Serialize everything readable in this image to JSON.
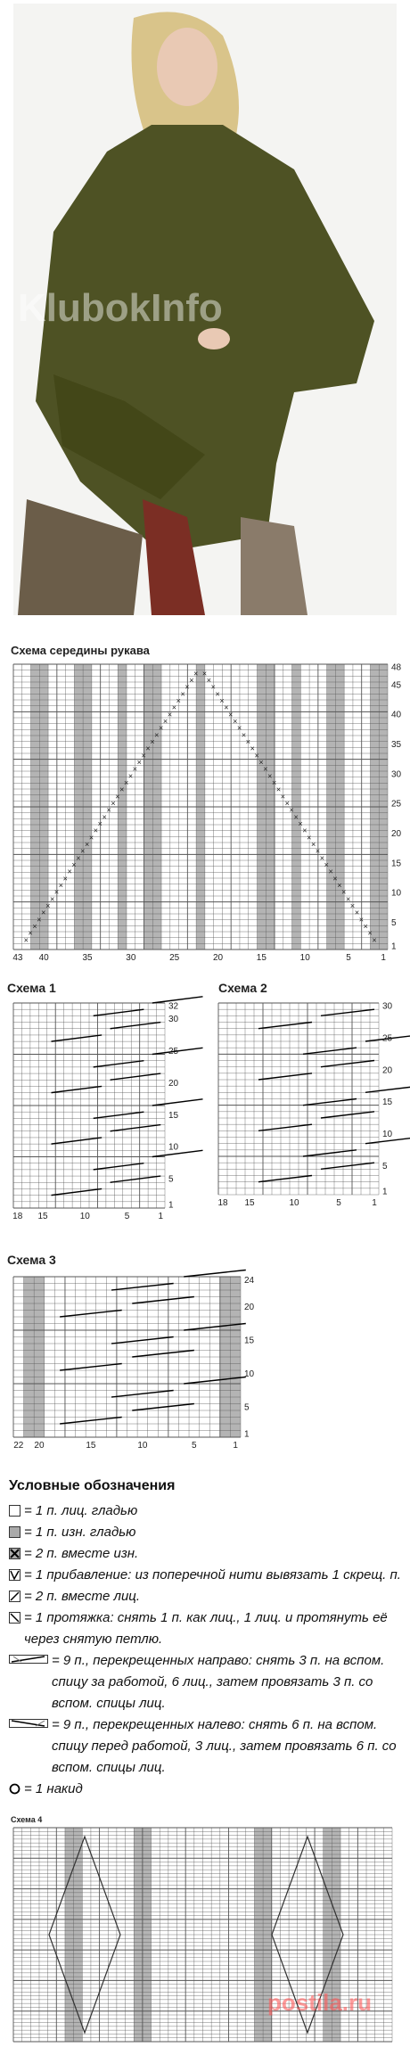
{
  "photo": {
    "watermark": "KlubokInfo"
  },
  "charts": [
    {
      "title": "Схема середины рукава",
      "yticks": [
        1,
        5,
        10,
        15,
        20,
        25,
        30,
        35,
        40,
        45,
        48
      ],
      "xticks": [
        1,
        5,
        10,
        15,
        20,
        25,
        30,
        35,
        40,
        43
      ]
    },
    {
      "title": "Схема 1",
      "yticks": [
        1,
        5,
        10,
        15,
        20,
        25,
        30,
        32
      ],
      "xticks": [
        1,
        5,
        10,
        15,
        18
      ]
    },
    {
      "title": "Схема 2",
      "yticks": [
        1,
        5,
        10,
        15,
        20,
        25,
        30
      ],
      "xticks": [
        1,
        5,
        10,
        15,
        18
      ]
    },
    {
      "title": "Схема 3",
      "yticks": [
        1,
        5,
        10,
        15,
        20,
        24
      ],
      "xticks": [
        1,
        5,
        10,
        15,
        20,
        22
      ]
    },
    {
      "title": "Схема 4"
    }
  ],
  "legend": {
    "title": "Условные обозначения",
    "items": [
      "= 1 п. лиц. гладью",
      "= 1 п. изн. гладью",
      "= 2 п. вместе изн.",
      "= 1 прибавление: из поперечной нити вывязать 1 скрещ. п.",
      "= 2 п. вместе лиц.",
      "= 1 протяжка: снять 1 п. как лиц., 1 лиц. и протянуть её через снятую петлю.",
      "= 9 п., перекрещенных направо: снять 3 п. на вспом. спицу за работой, 6 лиц., затем провязать 3 п. со вспом. спицы лиц.",
      "= 9 п., перекрещенных налево: снять 6 п. на вспом. спицу перед работой, 3 лиц., затем провязать 6 п. со вспом. спицы лиц.",
      "= 1 накид"
    ]
  },
  "footer": {
    "watermark": "postila.ru"
  }
}
